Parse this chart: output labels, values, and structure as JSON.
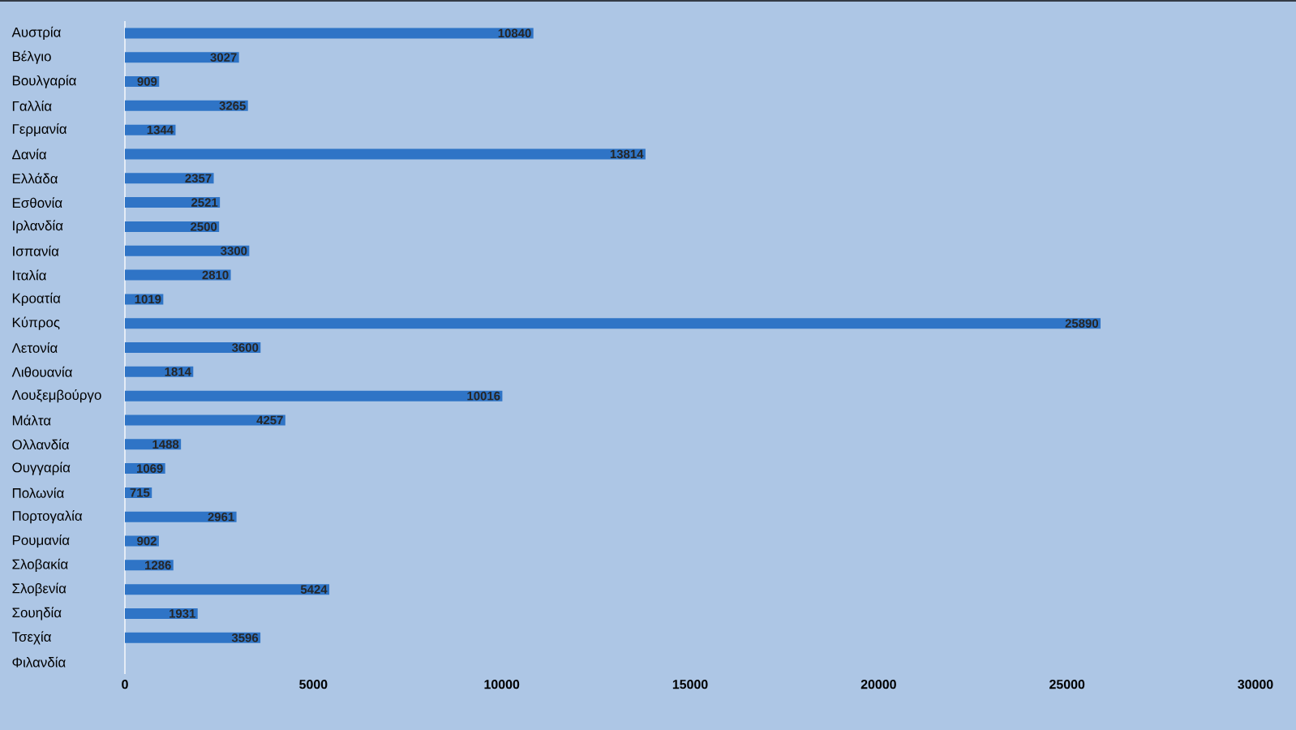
{
  "chart_data": {
    "type": "bar",
    "orientation": "horizontal",
    "categories": [
      "Αυστρία",
      "Βέλγιο",
      "Βουλγαρία",
      "Γαλλία",
      "Γερμανία",
      "Δανία",
      "Ελλάδα",
      "Εσθονία",
      "Ιρλανδία",
      "Ισπανία",
      "Ιταλία",
      "Κροατία",
      "Κύπρος",
      "Λετονία",
      "Λιθουανία",
      "Λουξεμβούργο",
      "Μάλτα",
      "Ολλανδία",
      "Ουγγαρία",
      "Πολωνία",
      "Πορτογαλία",
      "Ρουμανία",
      "Σλοβακία",
      "Σλοβενία",
      "Σουηδία",
      "Τσεχία",
      "Φιλανδία"
    ],
    "values": [
      10840,
      3027,
      909,
      3265,
      1344,
      13814,
      2357,
      2521,
      2500,
      3300,
      2810,
      1019,
      25890,
      3600,
      1814,
      10016,
      4257,
      1488,
      1069,
      715,
      2961,
      902,
      1286,
      5424,
      1931,
      3596,
      null
    ],
    "color": "#2f74c6",
    "data_labels": true,
    "xlim": [
      0,
      30000
    ],
    "xticks": [
      0,
      5000,
      10000,
      15000,
      20000,
      25000,
      30000
    ]
  }
}
